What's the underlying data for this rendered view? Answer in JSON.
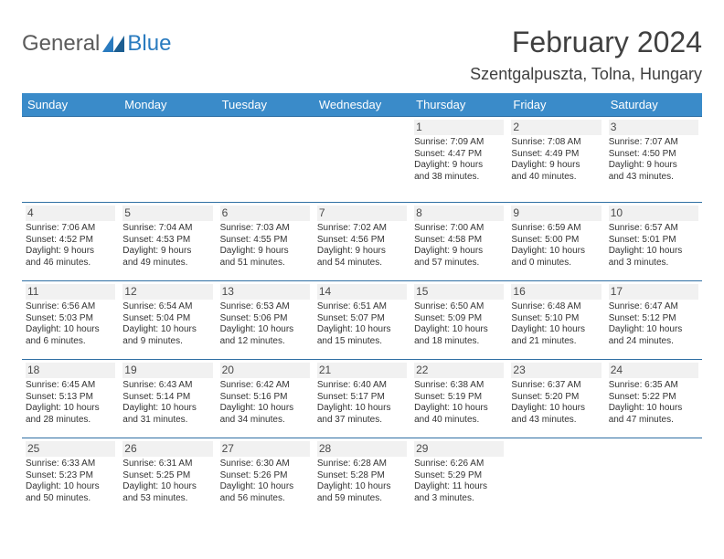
{
  "logo": {
    "general": "General",
    "blue": "Blue"
  },
  "title": "February 2024",
  "location": "Szentgalpuszta, Tolna, Hungary",
  "colors": {
    "header_bg": "#3a8bc9",
    "header_text": "#ffffff",
    "row_border": "#2f6fa3",
    "daynum_bg": "#f1f1f1",
    "logo_gray": "#5b5b5b",
    "logo_blue": "#2a7bbf",
    "body_text": "#333333"
  },
  "typography": {
    "title_fontsize": 32,
    "location_fontsize": 18,
    "day_header_fontsize": 13,
    "cell_fontsize": 10,
    "daynum_fontsize": 12
  },
  "day_headers": [
    "Sunday",
    "Monday",
    "Tuesday",
    "Wednesday",
    "Thursday",
    "Friday",
    "Saturday"
  ],
  "weeks": [
    [
      null,
      null,
      null,
      null,
      {
        "n": "1",
        "sunrise": "Sunrise: 7:09 AM",
        "sunset": "Sunset: 4:47 PM",
        "d1": "Daylight: 9 hours",
        "d2": "and 38 minutes."
      },
      {
        "n": "2",
        "sunrise": "Sunrise: 7:08 AM",
        "sunset": "Sunset: 4:49 PM",
        "d1": "Daylight: 9 hours",
        "d2": "and 40 minutes."
      },
      {
        "n": "3",
        "sunrise": "Sunrise: 7:07 AM",
        "sunset": "Sunset: 4:50 PM",
        "d1": "Daylight: 9 hours",
        "d2": "and 43 minutes."
      }
    ],
    [
      {
        "n": "4",
        "sunrise": "Sunrise: 7:06 AM",
        "sunset": "Sunset: 4:52 PM",
        "d1": "Daylight: 9 hours",
        "d2": "and 46 minutes."
      },
      {
        "n": "5",
        "sunrise": "Sunrise: 7:04 AM",
        "sunset": "Sunset: 4:53 PM",
        "d1": "Daylight: 9 hours",
        "d2": "and 49 minutes."
      },
      {
        "n": "6",
        "sunrise": "Sunrise: 7:03 AM",
        "sunset": "Sunset: 4:55 PM",
        "d1": "Daylight: 9 hours",
        "d2": "and 51 minutes."
      },
      {
        "n": "7",
        "sunrise": "Sunrise: 7:02 AM",
        "sunset": "Sunset: 4:56 PM",
        "d1": "Daylight: 9 hours",
        "d2": "and 54 minutes."
      },
      {
        "n": "8",
        "sunrise": "Sunrise: 7:00 AM",
        "sunset": "Sunset: 4:58 PM",
        "d1": "Daylight: 9 hours",
        "d2": "and 57 minutes."
      },
      {
        "n": "9",
        "sunrise": "Sunrise: 6:59 AM",
        "sunset": "Sunset: 5:00 PM",
        "d1": "Daylight: 10 hours",
        "d2": "and 0 minutes."
      },
      {
        "n": "10",
        "sunrise": "Sunrise: 6:57 AM",
        "sunset": "Sunset: 5:01 PM",
        "d1": "Daylight: 10 hours",
        "d2": "and 3 minutes."
      }
    ],
    [
      {
        "n": "11",
        "sunrise": "Sunrise: 6:56 AM",
        "sunset": "Sunset: 5:03 PM",
        "d1": "Daylight: 10 hours",
        "d2": "and 6 minutes."
      },
      {
        "n": "12",
        "sunrise": "Sunrise: 6:54 AM",
        "sunset": "Sunset: 5:04 PM",
        "d1": "Daylight: 10 hours",
        "d2": "and 9 minutes."
      },
      {
        "n": "13",
        "sunrise": "Sunrise: 6:53 AM",
        "sunset": "Sunset: 5:06 PM",
        "d1": "Daylight: 10 hours",
        "d2": "and 12 minutes."
      },
      {
        "n": "14",
        "sunrise": "Sunrise: 6:51 AM",
        "sunset": "Sunset: 5:07 PM",
        "d1": "Daylight: 10 hours",
        "d2": "and 15 minutes."
      },
      {
        "n": "15",
        "sunrise": "Sunrise: 6:50 AM",
        "sunset": "Sunset: 5:09 PM",
        "d1": "Daylight: 10 hours",
        "d2": "and 18 minutes."
      },
      {
        "n": "16",
        "sunrise": "Sunrise: 6:48 AM",
        "sunset": "Sunset: 5:10 PM",
        "d1": "Daylight: 10 hours",
        "d2": "and 21 minutes."
      },
      {
        "n": "17",
        "sunrise": "Sunrise: 6:47 AM",
        "sunset": "Sunset: 5:12 PM",
        "d1": "Daylight: 10 hours",
        "d2": "and 24 minutes."
      }
    ],
    [
      {
        "n": "18",
        "sunrise": "Sunrise: 6:45 AM",
        "sunset": "Sunset: 5:13 PM",
        "d1": "Daylight: 10 hours",
        "d2": "and 28 minutes."
      },
      {
        "n": "19",
        "sunrise": "Sunrise: 6:43 AM",
        "sunset": "Sunset: 5:14 PM",
        "d1": "Daylight: 10 hours",
        "d2": "and 31 minutes."
      },
      {
        "n": "20",
        "sunrise": "Sunrise: 6:42 AM",
        "sunset": "Sunset: 5:16 PM",
        "d1": "Daylight: 10 hours",
        "d2": "and 34 minutes."
      },
      {
        "n": "21",
        "sunrise": "Sunrise: 6:40 AM",
        "sunset": "Sunset: 5:17 PM",
        "d1": "Daylight: 10 hours",
        "d2": "and 37 minutes."
      },
      {
        "n": "22",
        "sunrise": "Sunrise: 6:38 AM",
        "sunset": "Sunset: 5:19 PM",
        "d1": "Daylight: 10 hours",
        "d2": "and 40 minutes."
      },
      {
        "n": "23",
        "sunrise": "Sunrise: 6:37 AM",
        "sunset": "Sunset: 5:20 PM",
        "d1": "Daylight: 10 hours",
        "d2": "and 43 minutes."
      },
      {
        "n": "24",
        "sunrise": "Sunrise: 6:35 AM",
        "sunset": "Sunset: 5:22 PM",
        "d1": "Daylight: 10 hours",
        "d2": "and 47 minutes."
      }
    ],
    [
      {
        "n": "25",
        "sunrise": "Sunrise: 6:33 AM",
        "sunset": "Sunset: 5:23 PM",
        "d1": "Daylight: 10 hours",
        "d2": "and 50 minutes."
      },
      {
        "n": "26",
        "sunrise": "Sunrise: 6:31 AM",
        "sunset": "Sunset: 5:25 PM",
        "d1": "Daylight: 10 hours",
        "d2": "and 53 minutes."
      },
      {
        "n": "27",
        "sunrise": "Sunrise: 6:30 AM",
        "sunset": "Sunset: 5:26 PM",
        "d1": "Daylight: 10 hours",
        "d2": "and 56 minutes."
      },
      {
        "n": "28",
        "sunrise": "Sunrise: 6:28 AM",
        "sunset": "Sunset: 5:28 PM",
        "d1": "Daylight: 10 hours",
        "d2": "and 59 minutes."
      },
      {
        "n": "29",
        "sunrise": "Sunrise: 6:26 AM",
        "sunset": "Sunset: 5:29 PM",
        "d1": "Daylight: 11 hours",
        "d2": "and 3 minutes."
      },
      null,
      null
    ]
  ]
}
